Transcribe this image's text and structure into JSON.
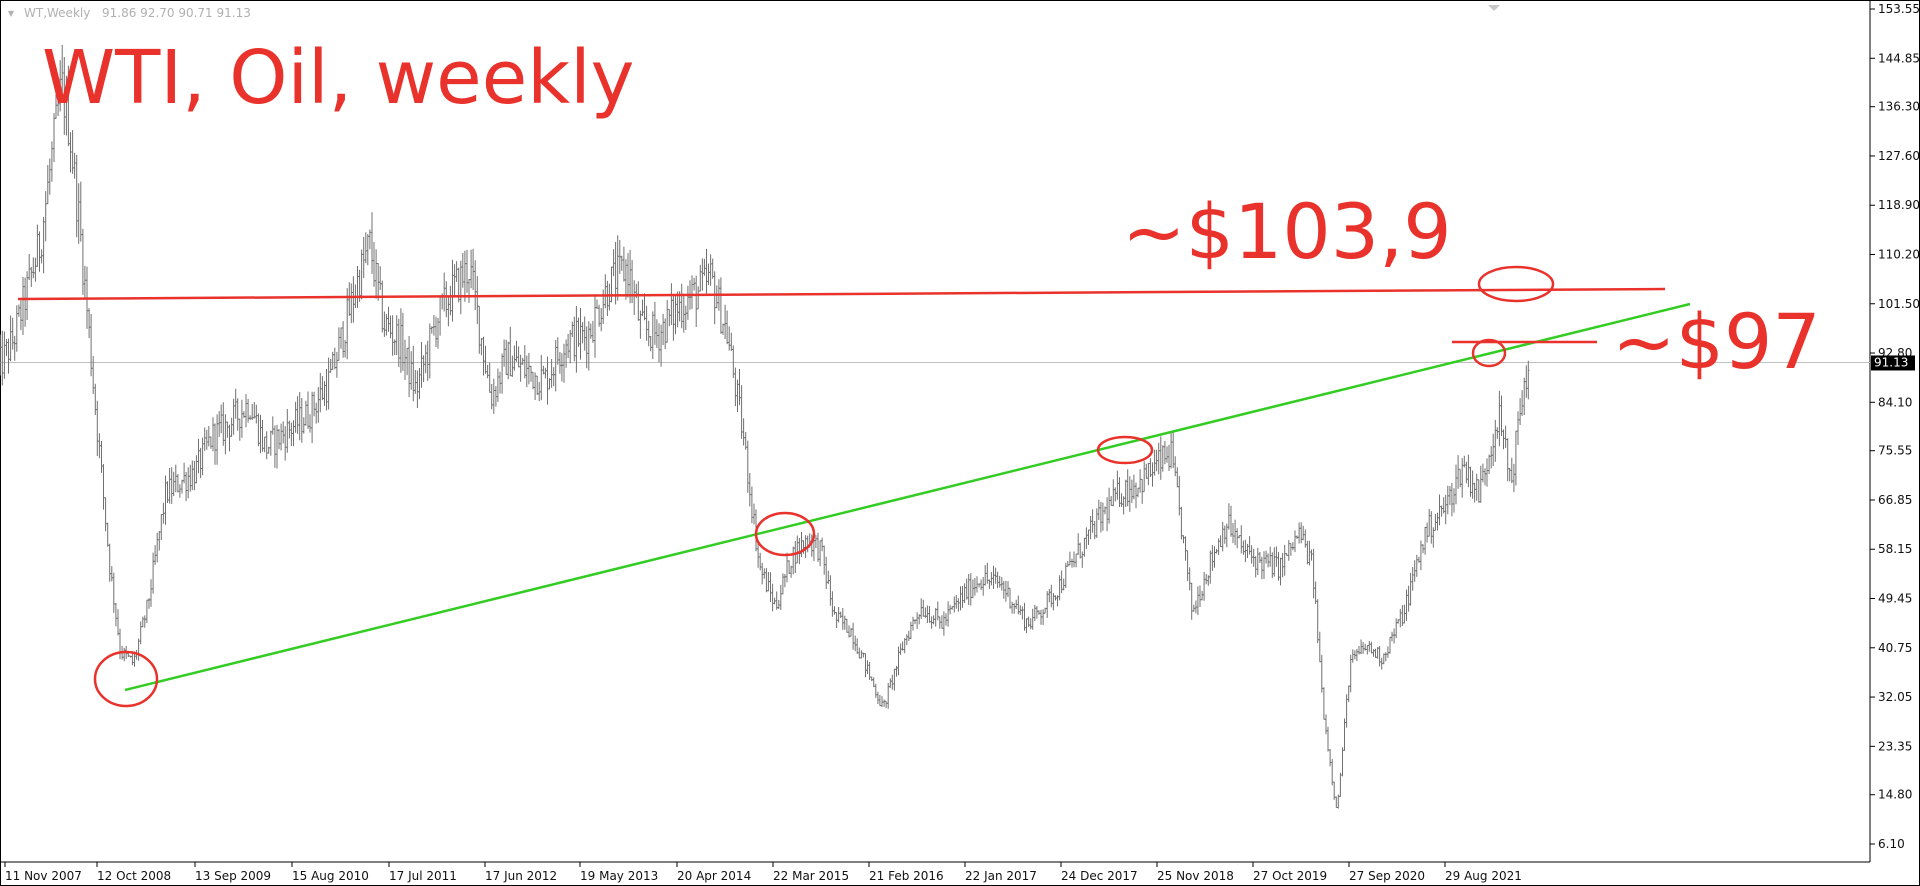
{
  "header": {
    "symbol": "WT,Weekly",
    "ohlc": "91.86 92.70 90.71 91.13"
  },
  "chart_data": {
    "type": "bar",
    "title": "WTI, Oil, weekly",
    "annotations": [
      "~$103,9",
      "~$97"
    ],
    "y_ticks": [
      "153.55",
      "144.85",
      "136.30",
      "127.60",
      "118.90",
      "110.20",
      "101.50",
      "92.80",
      "84.10",
      "75.55",
      "66.85",
      "58.15",
      "49.45",
      "40.75",
      "32.05",
      "23.35",
      "14.80",
      "6.10"
    ],
    "x_ticks": [
      "11 Nov 2007",
      "12 Oct 2008",
      "13 Sep 2009",
      "15 Aug 2010",
      "17 Jul 2011",
      "17 Jun 2012",
      "19 May 2013",
      "20 Apr 2014",
      "22 Mar 2015",
      "21 Feb 2016",
      "22 Jan 2017",
      "24 Dec 2017",
      "25 Nov 2018",
      "27 Oct 2019",
      "27 Sep 2020",
      "29 Aug 2021"
    ],
    "ylim": [
      6.1,
      153.55
    ],
    "current_price": "91.13",
    "resistance_level": 103.9,
    "price_path": [
      [
        2007.86,
        90
      ],
      [
        2008.0,
        95
      ],
      [
        2008.25,
        112
      ],
      [
        2008.45,
        140
      ],
      [
        2008.52,
        133
      ],
      [
        2008.62,
        115
      ],
      [
        2008.78,
        80
      ],
      [
        2008.9,
        55
      ],
      [
        2009.0,
        40
      ],
      [
        2009.12,
        38
      ],
      [
        2009.25,
        48
      ],
      [
        2009.42,
        68
      ],
      [
        2009.55,
        70
      ],
      [
        2009.7,
        72
      ],
      [
        2009.85,
        78
      ],
      [
        2010.0,
        80
      ],
      [
        2010.2,
        84
      ],
      [
        2010.35,
        76
      ],
      [
        2010.55,
        79
      ],
      [
        2010.75,
        82
      ],
      [
        2010.95,
        88
      ],
      [
        2011.2,
        105
      ],
      [
        2011.32,
        112
      ],
      [
        2011.45,
        98
      ],
      [
        2011.6,
        95
      ],
      [
        2011.75,
        86
      ],
      [
        2011.95,
        99
      ],
      [
        2012.1,
        104
      ],
      [
        2012.25,
        108
      ],
      [
        2012.45,
        85
      ],
      [
        2012.6,
        92
      ],
      [
        2012.75,
        90
      ],
      [
        2012.95,
        88
      ],
      [
        2013.15,
        95
      ],
      [
        2013.35,
        96
      ],
      [
        2013.55,
        105
      ],
      [
        2013.72,
        108
      ],
      [
        2013.85,
        97
      ],
      [
        2014.0,
        96
      ],
      [
        2014.2,
        101
      ],
      [
        2014.4,
        104
      ],
      [
        2014.5,
        106
      ],
      [
        2014.65,
        96
      ],
      [
        2014.8,
        78
      ],
      [
        2014.95,
        55
      ],
      [
        2015.1,
        48
      ],
      [
        2015.25,
        57
      ],
      [
        2015.4,
        60
      ],
      [
        2015.52,
        58
      ],
      [
        2015.65,
        46
      ],
      [
        2015.8,
        44
      ],
      [
        2015.95,
        37
      ],
      [
        2016.1,
        30
      ],
      [
        2016.3,
        42
      ],
      [
        2016.45,
        48
      ],
      [
        2016.65,
        45
      ],
      [
        2016.85,
        50
      ],
      [
        2017.0,
        53
      ],
      [
        2017.2,
        52
      ],
      [
        2017.45,
        45
      ],
      [
        2017.6,
        48
      ],
      [
        2017.75,
        52
      ],
      [
        2017.9,
        57
      ],
      [
        2018.1,
        63
      ],
      [
        2018.3,
        68
      ],
      [
        2018.5,
        70
      ],
      [
        2018.65,
        73
      ],
      [
        2018.78,
        75
      ],
      [
        2018.88,
        62
      ],
      [
        2018.98,
        47
      ],
      [
        2019.15,
        56
      ],
      [
        2019.3,
        63
      ],
      [
        2019.45,
        58
      ],
      [
        2019.6,
        56
      ],
      [
        2019.8,
        55
      ],
      [
        2019.98,
        61
      ],
      [
        2020.1,
        55
      ],
      [
        2020.2,
        30
      ],
      [
        2020.3,
        15
      ],
      [
        2020.33,
        12
      ],
      [
        2020.45,
        38
      ],
      [
        2020.6,
        41
      ],
      [
        2020.75,
        39
      ],
      [
        2020.95,
        47
      ],
      [
        2021.15,
        61
      ],
      [
        2021.35,
        66
      ],
      [
        2021.5,
        73
      ],
      [
        2021.65,
        68
      ],
      [
        2021.83,
        82
      ],
      [
        2021.95,
        70
      ],
      [
        2022.05,
        85
      ],
      [
        2022.12,
        91
      ]
    ]
  }
}
